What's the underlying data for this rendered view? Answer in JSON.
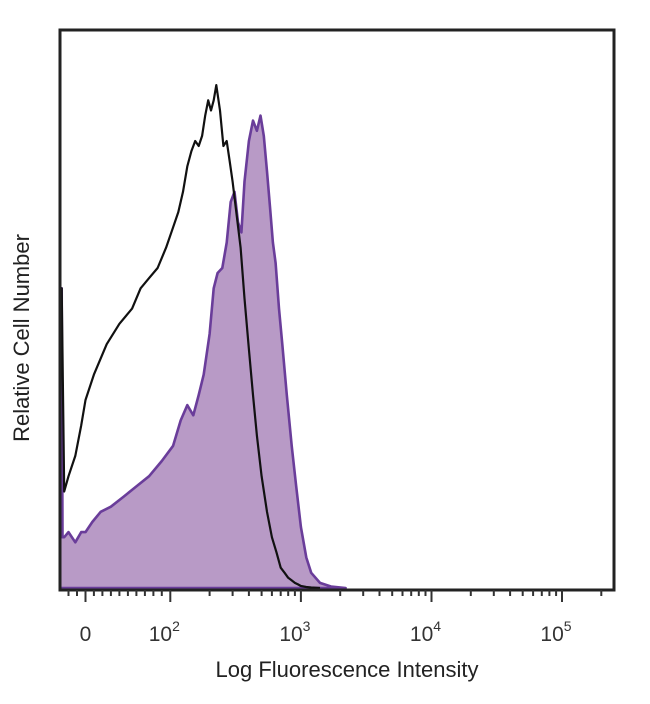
{
  "chart_data": {
    "type": "area",
    "xlabel": "Log Fluorescence Intensity",
    "ylabel": "Relative Cell Number",
    "x_scale": "biexponential",
    "xlim": [
      -30,
      250000
    ],
    "ylim": [
      0,
      100
    ],
    "y_ticks": false,
    "grid": false,
    "legend": "none",
    "x_ticks": [
      {
        "label": "0",
        "value": 0
      },
      {
        "label": "10",
        "exp": "2",
        "value": 100
      },
      {
        "label": "10",
        "exp": "3",
        "value": 1000
      },
      {
        "label": "10",
        "exp": "4",
        "value": 10000
      },
      {
        "label": "10",
        "exp": "5",
        "value": 100000
      }
    ],
    "series": [
      {
        "style": "filled",
        "color": "#6a3d9a",
        "fill": "#b89ac6",
        "x": [
          -30,
          -29,
          -28,
          -27,
          -25,
          -20,
          -12,
          -5,
          0,
          8,
          18,
          30,
          45,
          60,
          75,
          90,
          105,
          120,
          135,
          150,
          165,
          180,
          200,
          215,
          230,
          250,
          270,
          290,
          310,
          330,
          350,
          370,
          400,
          430,
          460,
          490,
          520,
          550,
          580,
          610,
          640,
          680,
          720,
          780,
          850,
          920,
          1000,
          1100,
          1200,
          1400,
          1700,
          2200
        ],
        "y": [
          0,
          59,
          59,
          10,
          10,
          11,
          9,
          11,
          11,
          13,
          15,
          16,
          18,
          20,
          22,
          25,
          28,
          33,
          36,
          34,
          38,
          42,
          50,
          59,
          62,
          63,
          68,
          76,
          78,
          72,
          70,
          80,
          88,
          92,
          90,
          93,
          89,
          82,
          75,
          68,
          64,
          55,
          48,
          38,
          28,
          20,
          12,
          6,
          3,
          1,
          0.3,
          0
        ]
      },
      {
        "style": "line",
        "color": "#111111",
        "x": [
          -30,
          -29,
          -28,
          -25,
          -20,
          -12,
          -5,
          0,
          10,
          25,
          40,
          55,
          65,
          75,
          85,
          95,
          105,
          115,
          125,
          135,
          145,
          155,
          165,
          175,
          185,
          195,
          205,
          215,
          225,
          240,
          255,
          270,
          285,
          300,
          320,
          345,
          370,
          400,
          430,
          460,
          500,
          550,
          600,
          650,
          700,
          750,
          800,
          850,
          900,
          950,
          1000,
          1100,
          1200,
          1400
        ],
        "y": [
          0,
          59,
          59,
          19,
          22,
          26,
          32,
          37,
          42,
          48,
          52,
          55,
          59,
          61,
          63,
          67,
          71,
          74,
          78,
          83,
          86,
          88,
          87,
          89,
          93,
          96,
          94,
          96,
          99,
          94,
          87,
          88,
          84,
          80,
          74,
          67,
          57,
          47,
          38,
          30,
          22,
          15,
          10,
          7,
          4,
          3,
          2,
          1.5,
          1,
          0.7,
          0.4,
          0.2,
          0.1,
          0
        ]
      }
    ]
  }
}
